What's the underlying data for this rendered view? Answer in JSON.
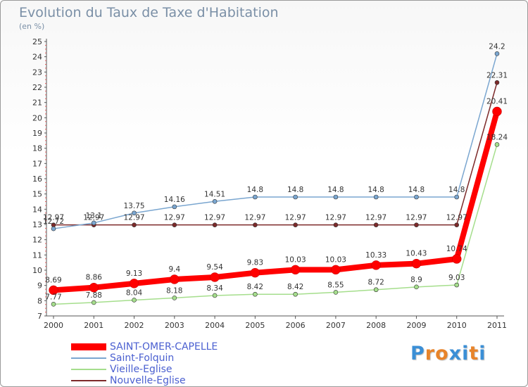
{
  "chart_data": {
    "type": "line",
    "title": "Evolution du Taux de Taxe d'Habitation",
    "subtitle": "(en %)",
    "x": [
      "2000",
      "2001",
      "2002",
      "2003",
      "2004",
      "2005",
      "2006",
      "2007",
      "2008",
      "2009",
      "2010",
      "2011"
    ],
    "ylim": [
      7,
      25
    ],
    "yticks": [
      7,
      8,
      9,
      10,
      11,
      12,
      13,
      14,
      15,
      16,
      17,
      18,
      19,
      20,
      21,
      22,
      23,
      24,
      25
    ],
    "grid": false,
    "legend_position": "bottom-left",
    "series": [
      {
        "name": "SAINT-OMER-CAPELLE",
        "color": "#ff0000",
        "values": [
          8.69,
          8.86,
          9.13,
          9.4,
          9.54,
          9.83,
          10.03,
          10.03,
          10.33,
          10.43,
          10.74,
          20.41
        ]
      },
      {
        "name": "Saint-Folquin",
        "color": "#7aa6d0",
        "values": [
          12.72,
          13.1,
          13.75,
          14.16,
          14.51,
          14.8,
          14.8,
          14.8,
          14.8,
          14.8,
          14.8,
          24.2
        ]
      },
      {
        "name": "Vieille-Eglise",
        "color": "#a5de8c",
        "values": [
          7.77,
          7.88,
          8.04,
          8.18,
          8.34,
          8.42,
          8.42,
          8.55,
          8.72,
          8.9,
          9.03,
          18.24
        ]
      },
      {
        "name": "Nouvelle-Eglise",
        "color": "#7d2a2a",
        "values": [
          12.97,
          12.97,
          12.97,
          12.97,
          12.97,
          12.97,
          12.97,
          12.97,
          12.97,
          12.97,
          12.97,
          22.31
        ]
      }
    ],
    "data_labels": [
      [
        "8.69",
        "8.86",
        "9.13",
        "9.4",
        "9.54",
        "9.83",
        "10.03",
        "10.03",
        "10.33",
        "10.43",
        "10.74",
        "20.41"
      ],
      [
        "12.72",
        "13.1",
        "13.75",
        "14.16",
        "14.51",
        "14.8",
        "14.8",
        "14.8",
        "14.8",
        "14.8",
        "14.8",
        "24.2"
      ],
      [
        "7.77",
        "7.88",
        "8.04",
        "8.18",
        "8.34",
        "8.42",
        "8.42",
        "8.55",
        "8.72",
        "8.9",
        "9.03",
        "18.24"
      ],
      [
        "12.97",
        "12.97",
        "12.97",
        "12.97",
        "12.97",
        "12.97",
        "12.97",
        "12.97",
        "12.97",
        "12.97",
        "12.97",
        "22.31"
      ]
    ]
  },
  "legend": [
    {
      "label": "SAINT-OMER-CAPELLE"
    },
    {
      "label": "Saint-Folquin"
    },
    {
      "label": "Vieille-Eglise"
    },
    {
      "label": "Nouvelle-Eglise"
    }
  ],
  "logo": {
    "text": "Proxiti",
    "letter_colors": [
      "#3b8fd6",
      "#e8842a",
      "#e8842a",
      "#3b8fd6",
      "#3b8fd6",
      "#e8842a",
      "#3b8fd6"
    ]
  }
}
